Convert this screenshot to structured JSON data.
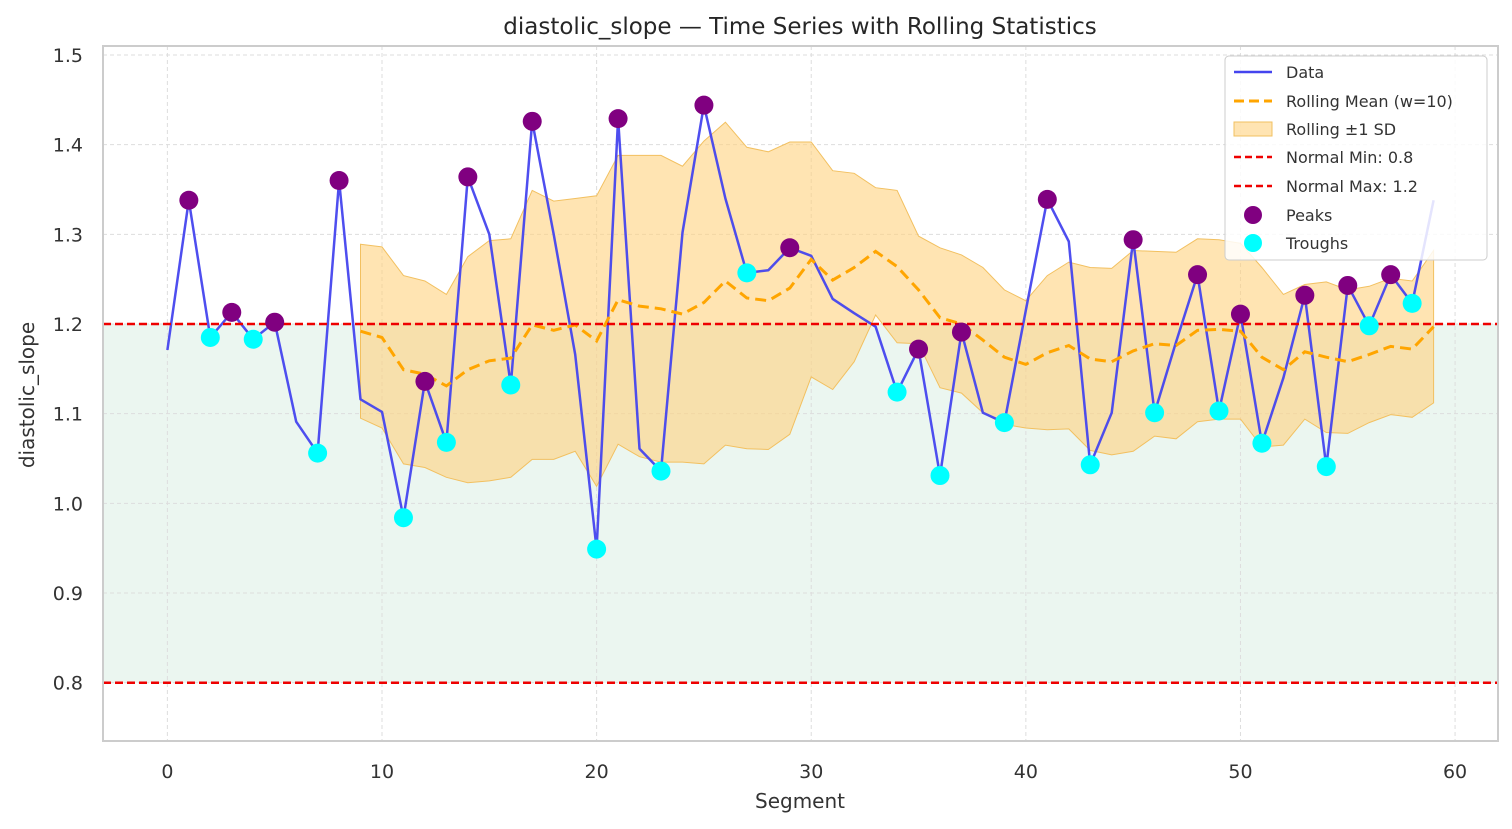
{
  "chart_data": {
    "type": "line",
    "title": "diastolic_slope — Time Series with Rolling Statistics",
    "xlabel": "Segment",
    "ylabel": "diastolic_slope",
    "xlim": [
      -3,
      62
    ],
    "ylim": [
      0.735,
      1.51
    ],
    "xticks": [
      0,
      10,
      20,
      30,
      40,
      50,
      60
    ],
    "yticks": [
      0.8,
      0.9,
      1.0,
      1.1,
      1.2,
      1.3,
      1.4,
      1.5
    ],
    "xtick_labels": [
      "0",
      "10",
      "20",
      "30",
      "40",
      "50",
      "60"
    ],
    "ytick_labels": [
      "0.8",
      "0.9",
      "1.0",
      "1.1",
      "1.2",
      "1.3",
      "1.4",
      "1.5"
    ],
    "grid": true,
    "legend_position": "top-right",
    "colors": {
      "data": "#4444ee",
      "rolling_mean": "#ffa500",
      "band": "#ffd27f",
      "normal": "#ee0000",
      "normal_fill": "#e3f2ea",
      "peaks": "#800080",
      "troughs": "#00ffff"
    },
    "series": [
      {
        "name": "Data",
        "x": [
          0,
          1,
          2,
          3,
          4,
          5,
          6,
          7,
          8,
          9,
          10,
          11,
          12,
          13,
          14,
          15,
          16,
          17,
          18,
          19,
          20,
          21,
          22,
          23,
          24,
          25,
          26,
          27,
          28,
          29,
          30,
          31,
          32,
          33,
          34,
          35,
          36,
          37,
          38,
          39,
          40,
          41,
          42,
          43,
          44,
          45,
          46,
          47,
          48,
          49,
          50,
          51,
          52,
          53,
          54,
          55,
          56,
          57,
          58,
          59
        ],
        "values": [
          1.171,
          1.338,
          1.185,
          1.213,
          1.183,
          1.202,
          1.091,
          1.056,
          1.36,
          1.116,
          1.102,
          0.984,
          1.136,
          1.068,
          1.364,
          1.3,
          1.132,
          1.426,
          1.3,
          1.166,
          0.949,
          1.429,
          1.061,
          1.036,
          1.302,
          1.444,
          1.34,
          1.257,
          1.26,
          1.285,
          1.276,
          1.228,
          1.212,
          1.197,
          1.124,
          1.172,
          1.031,
          1.191,
          1.101,
          1.09,
          1.215,
          1.339,
          1.292,
          1.043,
          1.101,
          1.294,
          1.101,
          1.18,
          1.255,
          1.103,
          1.211,
          1.067,
          1.14,
          1.232,
          1.041,
          1.243,
          1.198,
          1.255,
          1.223,
          1.338
        ]
      },
      {
        "name": "Rolling Mean (w=10)",
        "x": [
          9,
          10,
          11,
          12,
          13,
          14,
          15,
          16,
          17,
          18,
          19,
          20,
          21,
          22,
          23,
          24,
          25,
          26,
          27,
          28,
          29,
          30,
          31,
          32,
          33,
          34,
          35,
          36,
          37,
          38,
          39,
          40,
          41,
          42,
          43,
          44,
          45,
          46,
          47,
          48,
          49,
          50,
          51,
          52,
          53,
          54,
          55,
          56,
          57,
          58,
          59
        ],
        "values": [
          1.192,
          1.185,
          1.149,
          1.144,
          1.131,
          1.149,
          1.159,
          1.162,
          1.199,
          1.193,
          1.199,
          1.181,
          1.227,
          1.22,
          1.217,
          1.211,
          1.224,
          1.248,
          1.229,
          1.226,
          1.24,
          1.272,
          1.249,
          1.263,
          1.281,
          1.264,
          1.238,
          1.207,
          1.2,
          1.182,
          1.163,
          1.155,
          1.168,
          1.176,
          1.161,
          1.158,
          1.17,
          1.178,
          1.176,
          1.193,
          1.194,
          1.192,
          1.163,
          1.149,
          1.169,
          1.163,
          1.158,
          1.166,
          1.175,
          1.172,
          1.197
        ]
      },
      {
        "name": "Rolling ±1 SD",
        "x": [
          9,
          10,
          11,
          12,
          13,
          14,
          15,
          16,
          17,
          18,
          19,
          20,
          21,
          22,
          23,
          24,
          25,
          26,
          27,
          28,
          29,
          30,
          31,
          32,
          33,
          34,
          35,
          36,
          37,
          38,
          39,
          40,
          41,
          42,
          43,
          44,
          45,
          46,
          47,
          48,
          49,
          50,
          51,
          52,
          53,
          54,
          55,
          56,
          57,
          58,
          59
        ],
        "upper": [
          1.289,
          1.286,
          1.254,
          1.248,
          1.233,
          1.275,
          1.293,
          1.295,
          1.349,
          1.337,
          1.34,
          1.343,
          1.388,
          1.388,
          1.388,
          1.376,
          1.404,
          1.425,
          1.397,
          1.392,
          1.403,
          1.403,
          1.371,
          1.368,
          1.352,
          1.349,
          1.298,
          1.285,
          1.277,
          1.263,
          1.238,
          1.226,
          1.254,
          1.269,
          1.263,
          1.262,
          1.282,
          1.281,
          1.28,
          1.295,
          1.294,
          1.29,
          1.263,
          1.233,
          1.244,
          1.247,
          1.238,
          1.242,
          1.251,
          1.248,
          1.282
        ],
        "lower": [
          1.095,
          1.084,
          1.044,
          1.04,
          1.029,
          1.023,
          1.025,
          1.029,
          1.049,
          1.049,
          1.058,
          1.019,
          1.066,
          1.052,
          1.046,
          1.046,
          1.044,
          1.065,
          1.061,
          1.06,
          1.077,
          1.141,
          1.127,
          1.158,
          1.21,
          1.179,
          1.178,
          1.129,
          1.123,
          1.101,
          1.088,
          1.084,
          1.082,
          1.083,
          1.059,
          1.054,
          1.058,
          1.075,
          1.072,
          1.091,
          1.094,
          1.094,
          1.063,
          1.065,
          1.094,
          1.079,
          1.078,
          1.09,
          1.099,
          1.096,
          1.112
        ]
      },
      {
        "name": "Normal Min: 0.8",
        "y": 0.8
      },
      {
        "name": "Normal Max: 1.2",
        "y": 1.2
      },
      {
        "name": "Peaks",
        "x": [
          1,
          3,
          5,
          8,
          12,
          14,
          17,
          21,
          25,
          29,
          35,
          37,
          41,
          45,
          48,
          50,
          53,
          55,
          57
        ],
        "values": [
          1.338,
          1.213,
          1.202,
          1.36,
          1.136,
          1.364,
          1.426,
          1.429,
          1.444,
          1.285,
          1.172,
          1.191,
          1.339,
          1.294,
          1.255,
          1.211,
          1.232,
          1.243,
          1.255
        ]
      },
      {
        "name": "Troughs",
        "x": [
          2,
          4,
          7,
          11,
          13,
          16,
          20,
          23,
          27,
          34,
          36,
          39,
          43,
          46,
          49,
          51,
          54,
          56,
          58
        ],
        "values": [
          1.185,
          1.183,
          1.056,
          0.984,
          1.068,
          1.132,
          0.949,
          1.036,
          1.257,
          1.124,
          1.031,
          1.09,
          1.043,
          1.101,
          1.103,
          1.067,
          1.041,
          1.198,
          1.223
        ]
      }
    ]
  }
}
